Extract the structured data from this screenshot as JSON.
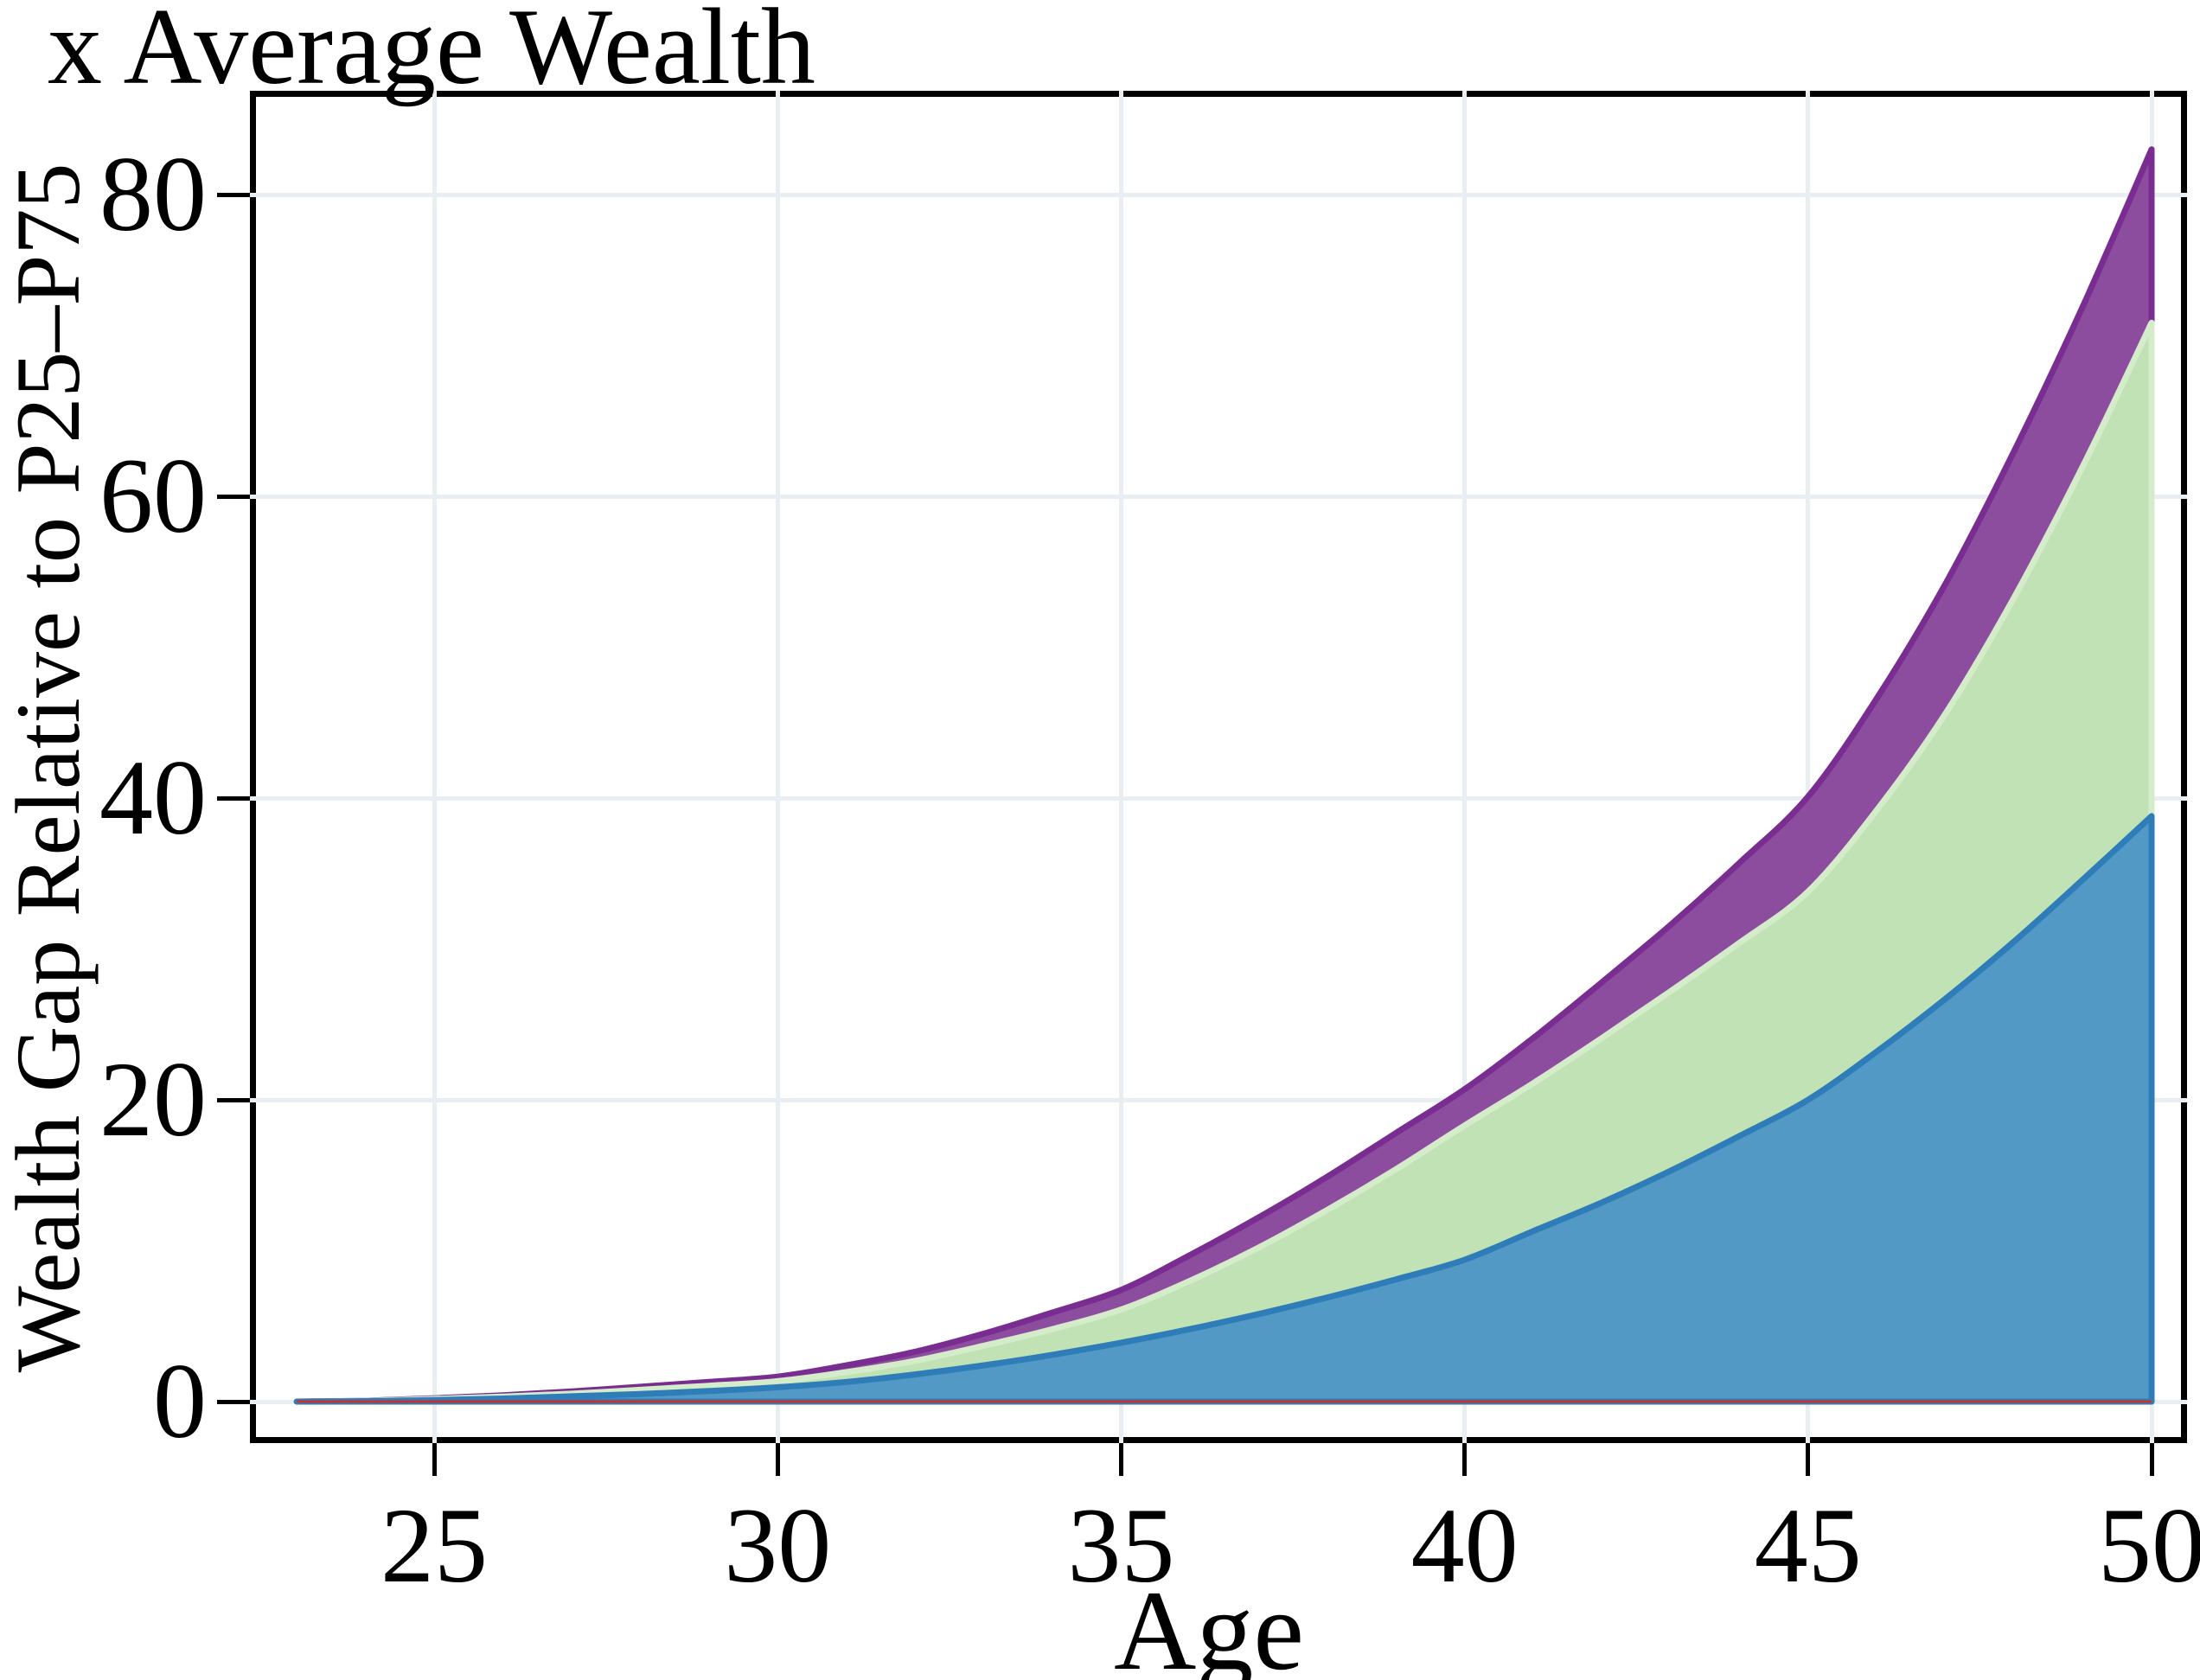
{
  "title": "x Average Wealth",
  "axes": {
    "x": {
      "label": "Age",
      "ticks": [
        25,
        30,
        35,
        40,
        45,
        50
      ],
      "range": [
        22.4,
        50.5
      ]
    },
    "y": {
      "label": "Wealth Gap Relative to P25–P75",
      "ticks": [
        0,
        20,
        40,
        60,
        80
      ],
      "range": [
        -2.6,
        86.6
      ]
    }
  },
  "style": {
    "gridline_color": "#e8eef1",
    "frame_color": "#000000",
    "background": "#ffffff"
  },
  "chart_data": {
    "type": "area",
    "title": "x Average Wealth",
    "xlabel": "Age",
    "ylabel": "Wealth Gap Relative to P25–P75",
    "xlim": [
      22.4,
      50.5
    ],
    "ylim": [
      -2.6,
      86.6
    ],
    "grid": true,
    "legend": false,
    "note": "Overlaid cumulative areas: values are cumulative stack tops; purple band = purple minus green, green band = green minus blue. Red is a flat baseline at 0.",
    "x": [
      23,
      24,
      25,
      26,
      27,
      28,
      29,
      30,
      31,
      32,
      33,
      34,
      35,
      36,
      37,
      38,
      39,
      40,
      41,
      42,
      43,
      44,
      45,
      46,
      47,
      48,
      49,
      50
    ],
    "series": [
      {
        "name": "purple-top-band",
        "kind": "area",
        "fill": "#8c4d9e",
        "stroke": "#7a2d90",
        "values": [
          0,
          0.06,
          0.22,
          0.42,
          0.67,
          0.98,
          1.3,
          1.65,
          2.4,
          3.3,
          4.5,
          5.9,
          7.4,
          9.7,
          12.2,
          14.9,
          17.8,
          20.7,
          24.1,
          27.8,
          31.6,
          35.7,
          40.1,
          46.6,
          54.2,
          63.0,
          72.6,
          83.0
        ]
      },
      {
        "name": "green-middle-band",
        "kind": "area",
        "fill": "#c0e2b5",
        "stroke": "#d4ecca",
        "values": [
          0,
          0.05,
          0.18,
          0.33,
          0.52,
          0.78,
          1.05,
          1.35,
          1.95,
          2.7,
          3.7,
          4.8,
          6.1,
          8.0,
          10.2,
          12.7,
          15.4,
          18.3,
          21.1,
          24.1,
          27.2,
          30.4,
          33.8,
          39.2,
          45.6,
          53.3,
          62.0,
          71.5
        ]
      },
      {
        "name": "blue-bottom-band",
        "kind": "area",
        "fill": "#5399c6",
        "stroke": "#2e7cb8",
        "values": [
          0,
          0.03,
          0.1,
          0.2,
          0.35,
          0.5,
          0.7,
          0.95,
          1.3,
          1.8,
          2.4,
          3.1,
          3.9,
          4.8,
          5.8,
          6.9,
          8.1,
          9.4,
          11.3,
          13.2,
          15.3,
          17.6,
          20.0,
          23.2,
          26.7,
          30.5,
          34.6,
          38.8
        ]
      },
      {
        "name": "red-baseline",
        "kind": "line",
        "stroke": "#c63131",
        "values": [
          0,
          0,
          0,
          0,
          0,
          0,
          0,
          0,
          0,
          0,
          0,
          0,
          0,
          0,
          0,
          0,
          0,
          0,
          0,
          0,
          0,
          0,
          0,
          0,
          0,
          0,
          0,
          0
        ]
      }
    ]
  }
}
